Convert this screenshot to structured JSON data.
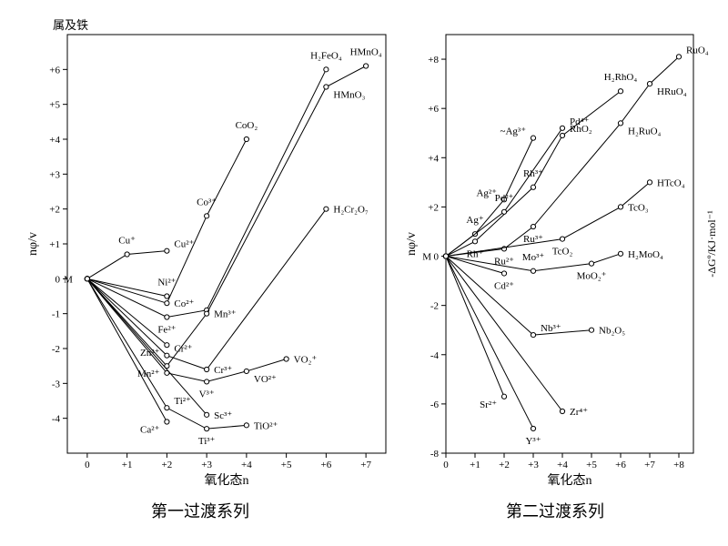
{
  "global": {
    "bg": "#ffffff",
    "stroke": "#000000",
    "marker_fill": "#ffffff",
    "marker_radius": 2.6,
    "label_fontsize": 11,
    "caption_fontsize": 18,
    "axis_fontsize": 14
  },
  "chart_left": {
    "type": "line-scatter",
    "tl_label": "属及铁",
    "ylabel": "nφ/v",
    "xlabel": "氧化态n",
    "caption": "第一过渡系列",
    "xlim": [
      -0.5,
      7.5
    ],
    "ylim": [
      -5,
      7
    ],
    "xticks": [
      0,
      1,
      2,
      3,
      4,
      5,
      6,
      7
    ],
    "xtick_labels": [
      "0",
      "+1",
      "+2",
      "+3",
      "+4",
      "+5",
      "+6",
      "+7"
    ],
    "yticks": [
      -4,
      -3,
      -2,
      -1,
      0,
      1,
      2,
      3,
      4,
      5,
      6
    ],
    "ytick_labels": [
      "-4",
      "-3",
      "-2",
      "-1",
      "0",
      "+1",
      "+2",
      "+3",
      "+4",
      "+5",
      "+6"
    ],
    "series": [
      {
        "name": "Cu",
        "pts": [
          [
            0,
            0
          ],
          [
            1,
            0.7
          ],
          [
            2,
            0.8
          ]
        ],
        "labels": [
          null,
          "Cu⁺",
          "Cu²⁺"
        ],
        "lpos": [
          null,
          "n",
          "ne"
        ]
      },
      {
        "name": "Ni",
        "pts": [
          [
            0,
            0
          ],
          [
            2,
            -0.5
          ]
        ],
        "labels": [
          null,
          "Ni²⁺"
        ],
        "lpos": [
          null,
          "n"
        ]
      },
      {
        "name": "Co",
        "pts": [
          [
            0,
            0
          ],
          [
            2,
            -0.7
          ],
          [
            3,
            1.8
          ],
          [
            4,
            4.0
          ]
        ],
        "labels": [
          null,
          "Co²⁺",
          "Co³⁺",
          "CoO₂"
        ],
        "lpos": [
          null,
          "e",
          "n",
          "n"
        ]
      },
      {
        "name": "Fe",
        "pts": [
          [
            0,
            0
          ],
          [
            2,
            -1.1
          ],
          [
            3,
            -0.9
          ],
          [
            6,
            6.0
          ]
        ],
        "labels": [
          null,
          "Fe²⁺",
          null,
          "H₂FeO₄"
        ],
        "lpos": [
          null,
          "s",
          null,
          "n"
        ]
      },
      {
        "name": "Mn",
        "pts": [
          [
            0,
            0
          ],
          [
            2,
            -2.5
          ],
          [
            3,
            -1.0
          ],
          [
            6,
            5.5
          ],
          [
            7,
            6.1
          ]
        ],
        "labels": [
          null,
          "Mn²⁺",
          "Mn³⁺",
          "HMnO₃",
          "HMnO₄"
        ],
        "lpos": [
          null,
          "sw",
          "e",
          "se",
          "n"
        ]
      },
      {
        "name": "Cr",
        "pts": [
          [
            0,
            0
          ],
          [
            2,
            -2.2
          ],
          [
            3,
            -2.6
          ],
          [
            6,
            2.0
          ]
        ],
        "labels": [
          null,
          "Cr²⁺",
          "Cr³⁺",
          "H₂Cr₂O₇"
        ],
        "lpos": [
          null,
          "ne",
          "e",
          "e"
        ]
      },
      {
        "name": "Zn",
        "pts": [
          [
            0,
            0
          ],
          [
            2,
            -1.9
          ]
        ],
        "labels": [
          null,
          "Zn²⁺"
        ],
        "lpos": [
          null,
          "sw"
        ]
      },
      {
        "name": "V",
        "pts": [
          [
            0,
            0
          ],
          [
            2,
            -2.7
          ],
          [
            3,
            -2.95
          ],
          [
            4,
            -2.65
          ],
          [
            5,
            -2.3
          ]
        ],
        "labels": [
          null,
          null,
          "V³⁺",
          "VO²⁺",
          "VO₂⁺"
        ],
        "lpos": [
          null,
          null,
          "s",
          "se",
          "e"
        ]
      },
      {
        "name": "Ti",
        "pts": [
          [
            0,
            0
          ],
          [
            2,
            -3.7
          ],
          [
            3,
            -4.3
          ],
          [
            4,
            -4.2
          ]
        ],
        "labels": [
          null,
          "Ti²⁺",
          "Ti³⁺",
          "TiO²⁺"
        ],
        "lpos": [
          null,
          "ne",
          "s",
          "e"
        ]
      },
      {
        "name": "Sc",
        "pts": [
          [
            0,
            0
          ],
          [
            3,
            -3.9
          ]
        ],
        "labels": [
          null,
          "Sc³⁺"
        ],
        "lpos": [
          null,
          "e"
        ]
      },
      {
        "name": "Ca",
        "pts": [
          [
            0,
            0
          ],
          [
            2,
            -4.1
          ]
        ],
        "labels": [
          null,
          "Ca²⁺"
        ],
        "lpos": [
          null,
          "sw"
        ]
      }
    ],
    "M_label": "M"
  },
  "chart_right": {
    "type": "line-scatter",
    "ylabel": "nφ/v",
    "ylabel2": "-ΔGº/KJ·mol⁻¹",
    "xlabel": "氧化态n",
    "caption": "第二过渡系列",
    "xlim": [
      0,
      8.5
    ],
    "ylim": [
      -8,
      9
    ],
    "xticks": [
      0,
      1,
      2,
      3,
      4,
      5,
      6,
      7,
      8
    ],
    "xtick_labels": [
      "0",
      "+1",
      "+2",
      "+3",
      "+4",
      "+5",
      "+6",
      "+7",
      "+8"
    ],
    "yticks": [
      -8,
      -6,
      -4,
      -2,
      0,
      2,
      4,
      6,
      8
    ],
    "ytick_labels": [
      "-8",
      "-6",
      "-4",
      "-2",
      "0",
      "+2",
      "+4",
      "+6",
      "+8"
    ],
    "series": [
      {
        "name": "Ag",
        "pts": [
          [
            0,
            0
          ],
          [
            1,
            0.9
          ],
          [
            2,
            2.3
          ],
          [
            3,
            4.8
          ]
        ],
        "labels": [
          null,
          "Ag⁺",
          "Ag²⁺",
          "~Ag³⁺"
        ],
        "lpos": [
          null,
          "n",
          "nw",
          "nw"
        ]
      },
      {
        "name": "Rh",
        "pts": [
          [
            0,
            0
          ],
          [
            1,
            0.6
          ],
          [
            3,
            2.8
          ],
          [
            4,
            4.9
          ],
          [
            6,
            6.7
          ]
        ],
        "labels": [
          null,
          "Rh⁺",
          "Rh³⁺",
          "RhO₂",
          "H₂RhO₄"
        ],
        "lpos": [
          null,
          "s",
          "n",
          "ne",
          "n"
        ]
      },
      {
        "name": "Pd",
        "pts": [
          [
            0,
            0
          ],
          [
            2,
            1.8
          ],
          [
            4,
            5.2
          ]
        ],
        "labels": [
          null,
          "Pd²⁺",
          "Pd⁴⁺"
        ],
        "lpos": [
          null,
          "n",
          "ne"
        ]
      },
      {
        "name": "Ru",
        "pts": [
          [
            0,
            0
          ],
          [
            2,
            0.3
          ],
          [
            3,
            1.2
          ],
          [
            6,
            5.4
          ],
          [
            7,
            7.0
          ],
          [
            8,
            8.1
          ]
        ],
        "labels": [
          null,
          "Ru²⁺",
          "Ru³⁺",
          "H₂RuO₄",
          "HRuO₄",
          "RuO₄"
        ],
        "lpos": [
          null,
          "s",
          "s",
          "se",
          "se",
          "ne"
        ]
      },
      {
        "name": "Tc",
        "pts": [
          [
            0,
            0
          ],
          [
            4,
            0.7
          ],
          [
            6,
            2.0
          ],
          [
            7,
            3.0
          ]
        ],
        "labels": [
          null,
          "TcO₂",
          "TcO₃",
          "HTcO₄"
        ],
        "lpos": [
          null,
          "s",
          "e",
          "e"
        ]
      },
      {
        "name": "Cd",
        "pts": [
          [
            0,
            0
          ],
          [
            2,
            -0.7
          ]
        ],
        "labels": [
          null,
          "Cd²⁺"
        ],
        "lpos": [
          null,
          "s"
        ]
      },
      {
        "name": "Mo",
        "pts": [
          [
            0,
            0
          ],
          [
            3,
            -0.6
          ],
          [
            5,
            -0.3
          ],
          [
            6,
            0.1
          ]
        ],
        "labels": [
          null,
          "Mo³⁺",
          "MoO₂⁺",
          "H₂MoO₄"
        ],
        "lpos": [
          null,
          "n",
          "s",
          "e"
        ]
      },
      {
        "name": "Nb",
        "pts": [
          [
            0,
            0
          ],
          [
            3,
            -3.2
          ],
          [
            5,
            -3.0
          ]
        ],
        "labels": [
          null,
          "Nb³⁺",
          "Nb₂O₅"
        ],
        "lpos": [
          null,
          "ne",
          "e"
        ]
      },
      {
        "name": "Zr",
        "pts": [
          [
            0,
            0
          ],
          [
            4,
            -6.3
          ]
        ],
        "labels": [
          null,
          "Zr⁴⁺"
        ],
        "lpos": [
          null,
          "e"
        ]
      },
      {
        "name": "Y",
        "pts": [
          [
            0,
            0
          ],
          [
            3,
            -7.0
          ]
        ],
        "labels": [
          null,
          "Y³⁺"
        ],
        "lpos": [
          null,
          "s"
        ]
      },
      {
        "name": "Sr",
        "pts": [
          [
            0,
            0
          ],
          [
            2,
            -5.7
          ]
        ],
        "labels": [
          null,
          "Sr²⁺"
        ],
        "lpos": [
          null,
          "sw"
        ]
      }
    ],
    "M_label": "M"
  }
}
